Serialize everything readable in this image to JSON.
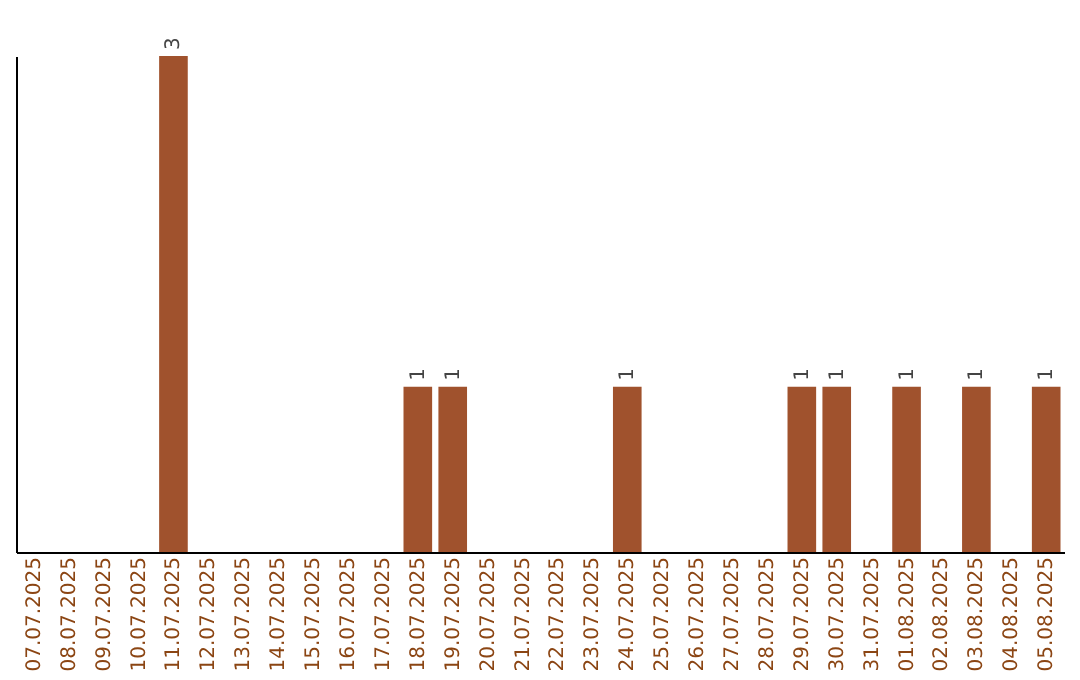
{
  "chart_data": {
    "type": "bar",
    "categories": [
      "07.07.2025",
      "08.07.2025",
      "09.07.2025",
      "10.07.2025",
      "11.07.2025",
      "12.07.2025",
      "13.07.2025",
      "14.07.2025",
      "15.07.2025",
      "16.07.2025",
      "17.07.2025",
      "18.07.2025",
      "19.07.2025",
      "20.07.2025",
      "21.07.2025",
      "22.07.2025",
      "23.07.2025",
      "24.07.2025",
      "25.07.2025",
      "26.07.2025",
      "27.07.2025",
      "28.07.2025",
      "29.07.2025",
      "30.07.2025",
      "31.07.2025",
      "01.08.2025",
      "02.08.2025",
      "03.08.2025",
      "04.08.2025",
      "05.08.2025"
    ],
    "values": [
      0,
      0,
      0,
      0,
      3,
      0,
      0,
      0,
      0,
      0,
      0,
      1,
      1,
      0,
      0,
      0,
      0,
      1,
      0,
      0,
      0,
      0,
      1,
      1,
      0,
      1,
      0,
      1,
      0,
      1
    ],
    "value_labels": [
      null,
      null,
      null,
      null,
      "3",
      null,
      null,
      null,
      null,
      null,
      null,
      "1",
      "1",
      null,
      null,
      null,
      null,
      "1",
      null,
      null,
      null,
      null,
      "1",
      "1",
      null,
      "1",
      null,
      "1",
      null,
      "1"
    ],
    "color": "#a0522d",
    "tick_labels": "x",
    "grid": false
  }
}
